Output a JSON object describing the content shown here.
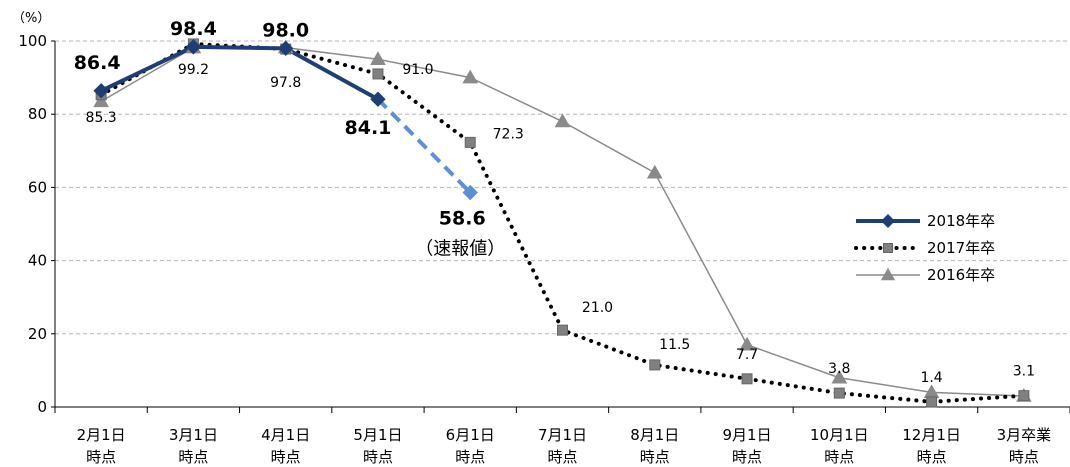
{
  "chart_data": {
    "type": "line",
    "unit_label": "（%）",
    "ylim": [
      0,
      100
    ],
    "yticks": [
      0,
      20,
      40,
      60,
      80,
      100
    ],
    "grid": true,
    "legend_position": "right",
    "categories": [
      [
        "2月1日",
        "時点"
      ],
      [
        "3月1日",
        "時点"
      ],
      [
        "4月1日",
        "時点"
      ],
      [
        "5月1日",
        "時点"
      ],
      [
        "6月1日",
        "時点"
      ],
      [
        "7月1日",
        "時点"
      ],
      [
        "8月1日",
        "時点"
      ],
      [
        "9月1日",
        "時点"
      ],
      [
        "10月1日",
        "時点"
      ],
      [
        "12月1日",
        "時点"
      ],
      [
        "3月卒業",
        "時点"
      ]
    ],
    "series": [
      {
        "name": "2018年卒",
        "color": "#1f3f74",
        "style": "solid-bold",
        "marker": "diamond",
        "values": [
          86.4,
          98.4,
          98.0,
          84.1,
          null,
          null,
          null,
          null,
          null,
          null,
          null
        ],
        "labels": [
          "86.4",
          "98.4",
          "98.0",
          "84.1",
          null,
          null,
          null,
          null,
          null,
          null,
          null
        ]
      },
      {
        "name": "2018年卒（速報値）",
        "color": "#5b8fd6",
        "style": "dashed",
        "marker": "diamond",
        "values": [
          null,
          null,
          null,
          84.1,
          58.6,
          null,
          null,
          null,
          null,
          null,
          null
        ],
        "labels": [
          null,
          null,
          null,
          null,
          "58.6",
          null,
          null,
          null,
          null,
          null,
          null
        ],
        "note": "（速報値）"
      },
      {
        "name": "2017年卒",
        "color": "#000000",
        "style": "dotted",
        "marker": "square",
        "values": [
          85.3,
          99.2,
          97.8,
          91.0,
          72.3,
          21.0,
          11.5,
          7.7,
          3.8,
          1.4,
          3.1
        ],
        "labels": [
          "85.3",
          "99.2",
          "97.8",
          "91.0",
          "72.3",
          "21.0",
          "11.5",
          "7.7",
          "3.8",
          "1.4",
          "3.1"
        ]
      },
      {
        "name": "2016年卒",
        "color": "#8a8a8a",
        "style": "solid-thin",
        "marker": "triangle",
        "values": [
          83.5,
          98.2,
          98.2,
          95.0,
          90.0,
          78.0,
          64.0,
          17.0,
          8.0,
          4.0,
          3.0
        ],
        "labels": [
          null,
          null,
          null,
          null,
          null,
          null,
          null,
          null,
          null,
          null,
          null
        ]
      }
    ],
    "legend": [
      "2018年卒",
      "2017年卒",
      "2016年卒"
    ]
  }
}
